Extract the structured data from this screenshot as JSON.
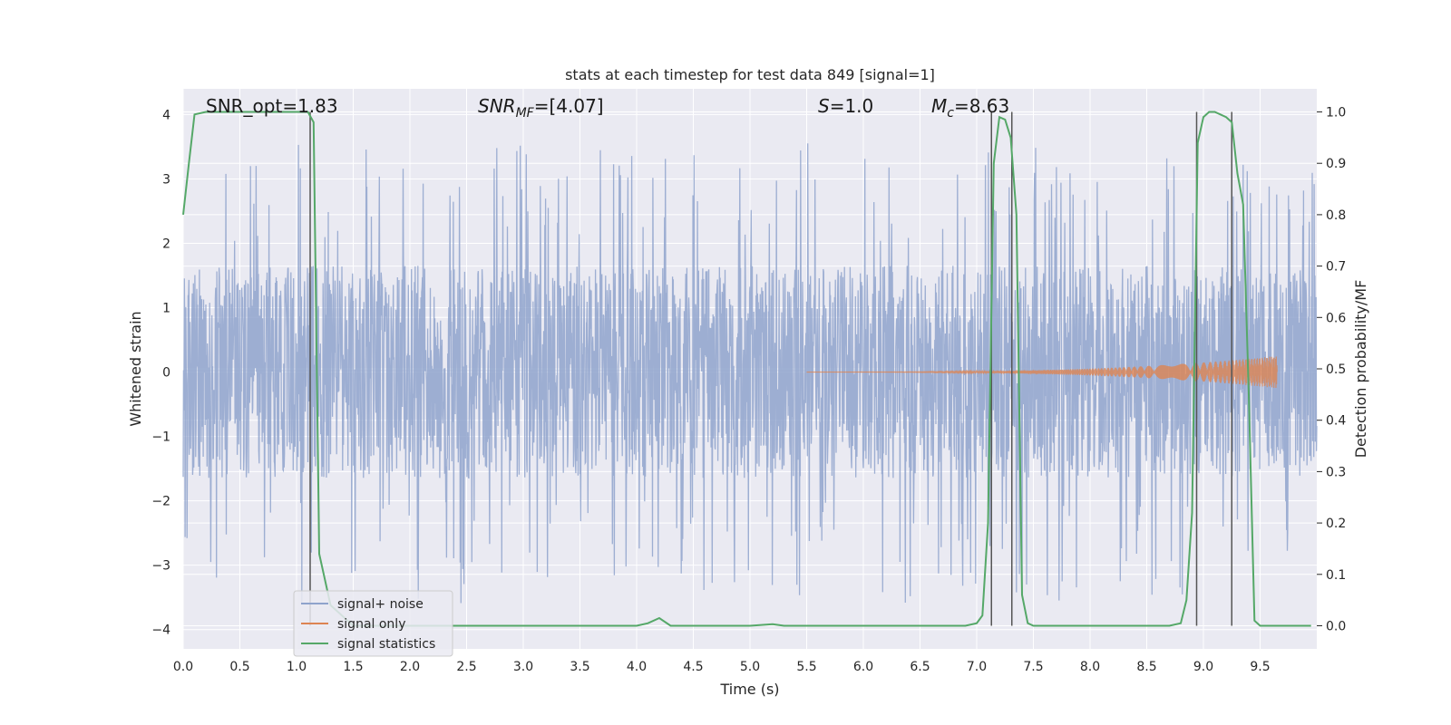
{
  "chart_data": {
    "type": "line",
    "title": "stats at each timestep for test data 849 [signal=1]",
    "xlabel": "Time (s)",
    "ylabel": "Whitened strain",
    "y2label": "Detection probability/MF",
    "xlim": [
      0.0,
      10.0
    ],
    "ylim": [
      -4.3,
      4.4
    ],
    "y2lim": [
      -0.045,
      1.045
    ],
    "xticks": [
      "0.0",
      "0.5",
      "1.0",
      "1.5",
      "2.0",
      "2.5",
      "3.0",
      "3.5",
      "4.0",
      "4.5",
      "5.0",
      "5.5",
      "6.0",
      "6.5",
      "7.0",
      "7.5",
      "8.0",
      "8.5",
      "9.0",
      "9.5"
    ],
    "yticks": [
      "4",
      "3",
      "2",
      "1",
      "0",
      "−1",
      "−2",
      "−3",
      "−4"
    ],
    "y2ticks": [
      "1.0",
      "0.9",
      "0.8",
      "0.7",
      "0.6",
      "0.5",
      "0.4",
      "0.3",
      "0.2",
      "0.1",
      "0.0"
    ],
    "grid": true,
    "legend_position": "lower-left",
    "annotations": [
      {
        "text": "SNR_opt=1.83",
        "x": 0.2
      },
      {
        "prefix": "SNR",
        "sub": "MF",
        "suffix": "=[4.07]",
        "x": 2.6
      },
      {
        "prefix": "S",
        "sub": "",
        "suffix": "=1.0",
        "x": 5.6
      },
      {
        "prefix": "M",
        "sub": "c",
        "suffix": "=8.63",
        "x": 6.6
      }
    ],
    "vertical_lines": [
      1.12,
      7.13,
      7.31,
      8.94,
      9.25
    ],
    "series": [
      {
        "name": "signal+ noise",
        "color": "#8fa3cc",
        "envelope": 1.65,
        "peak": 3.6
      },
      {
        "name": "signal only",
        "color": "#dd8452",
        "start": 5.5,
        "end": 9.65,
        "max_amp": 0.25
      },
      {
        "name": "signal statistics",
        "color": "#55a868",
        "x": [
          0.0,
          0.05,
          0.1,
          0.2,
          0.5,
          1.0,
          1.1,
          1.15,
          1.2,
          1.3,
          1.5,
          2.0,
          3.0,
          4.0,
          4.1,
          4.2,
          4.3,
          4.4,
          5.0,
          5.2,
          5.3,
          6.0,
          6.9,
          7.0,
          7.05,
          7.1,
          7.15,
          7.2,
          7.25,
          7.3,
          7.35,
          7.4,
          7.45,
          7.5,
          7.6,
          8.0,
          8.7,
          8.8,
          8.85,
          8.9,
          8.95,
          9.0,
          9.05,
          9.1,
          9.2,
          9.25,
          9.3,
          9.35,
          9.4,
          9.45,
          9.5,
          9.6,
          9.95
        ],
        "y": [
          0.8,
          0.9,
          0.995,
          1.0,
          1.0,
          1.0,
          1.0,
          0.98,
          0.14,
          0.04,
          0.0,
          0.0,
          0.0,
          0.0,
          0.005,
          0.015,
          0.0,
          0.0,
          0.0,
          0.003,
          0.0,
          0.0,
          0.0,
          0.005,
          0.02,
          0.2,
          0.9,
          0.99,
          0.985,
          0.95,
          0.8,
          0.06,
          0.005,
          0.0,
          0.0,
          0.0,
          0.0,
          0.005,
          0.05,
          0.22,
          0.94,
          0.99,
          1.0,
          1.0,
          0.99,
          0.98,
          0.88,
          0.82,
          0.45,
          0.01,
          0.0,
          0.0,
          0.0
        ]
      }
    ]
  }
}
